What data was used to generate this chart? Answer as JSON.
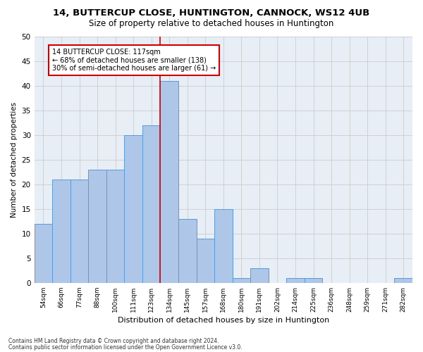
{
  "title1": "14, BUTTERCUP CLOSE, HUNTINGTON, CANNOCK, WS12 4UB",
  "title2": "Size of property relative to detached houses in Huntington",
  "xlabel": "Distribution of detached houses by size in Huntington",
  "ylabel": "Number of detached properties",
  "bar_labels": [
    "54sqm",
    "66sqm",
    "77sqm",
    "88sqm",
    "100sqm",
    "111sqm",
    "123sqm",
    "134sqm",
    "145sqm",
    "157sqm",
    "168sqm",
    "180sqm",
    "191sqm",
    "202sqm",
    "214sqm",
    "225sqm",
    "236sqm",
    "248sqm",
    "259sqm",
    "271sqm",
    "282sqm"
  ],
  "bar_values": [
    12,
    21,
    21,
    23,
    23,
    30,
    32,
    41,
    13,
    9,
    15,
    1,
    3,
    0,
    1,
    1,
    0,
    0,
    0,
    0,
    1
  ],
  "bar_color": "#aec6e8",
  "bar_edge_color": "#5b9bd5",
  "vline_x": 6.5,
  "vline_color": "#cc0000",
  "annotation_line1": "14 BUTTERCUP CLOSE: 117sqm",
  "annotation_line2": "← 68% of detached houses are smaller (138)",
  "annotation_line3": "30% of semi-detached houses are larger (61) →",
  "annotation_box_color": "#ffffff",
  "annotation_box_edge": "#cc0000",
  "grid_color": "#cccccc",
  "background_color": "#e8eef5",
  "footer1": "Contains HM Land Registry data © Crown copyright and database right 2024.",
  "footer2": "Contains public sector information licensed under the Open Government Licence v3.0.",
  "ylim": [
    0,
    50
  ],
  "yticks": [
    0,
    5,
    10,
    15,
    20,
    25,
    30,
    35,
    40,
    45,
    50
  ]
}
